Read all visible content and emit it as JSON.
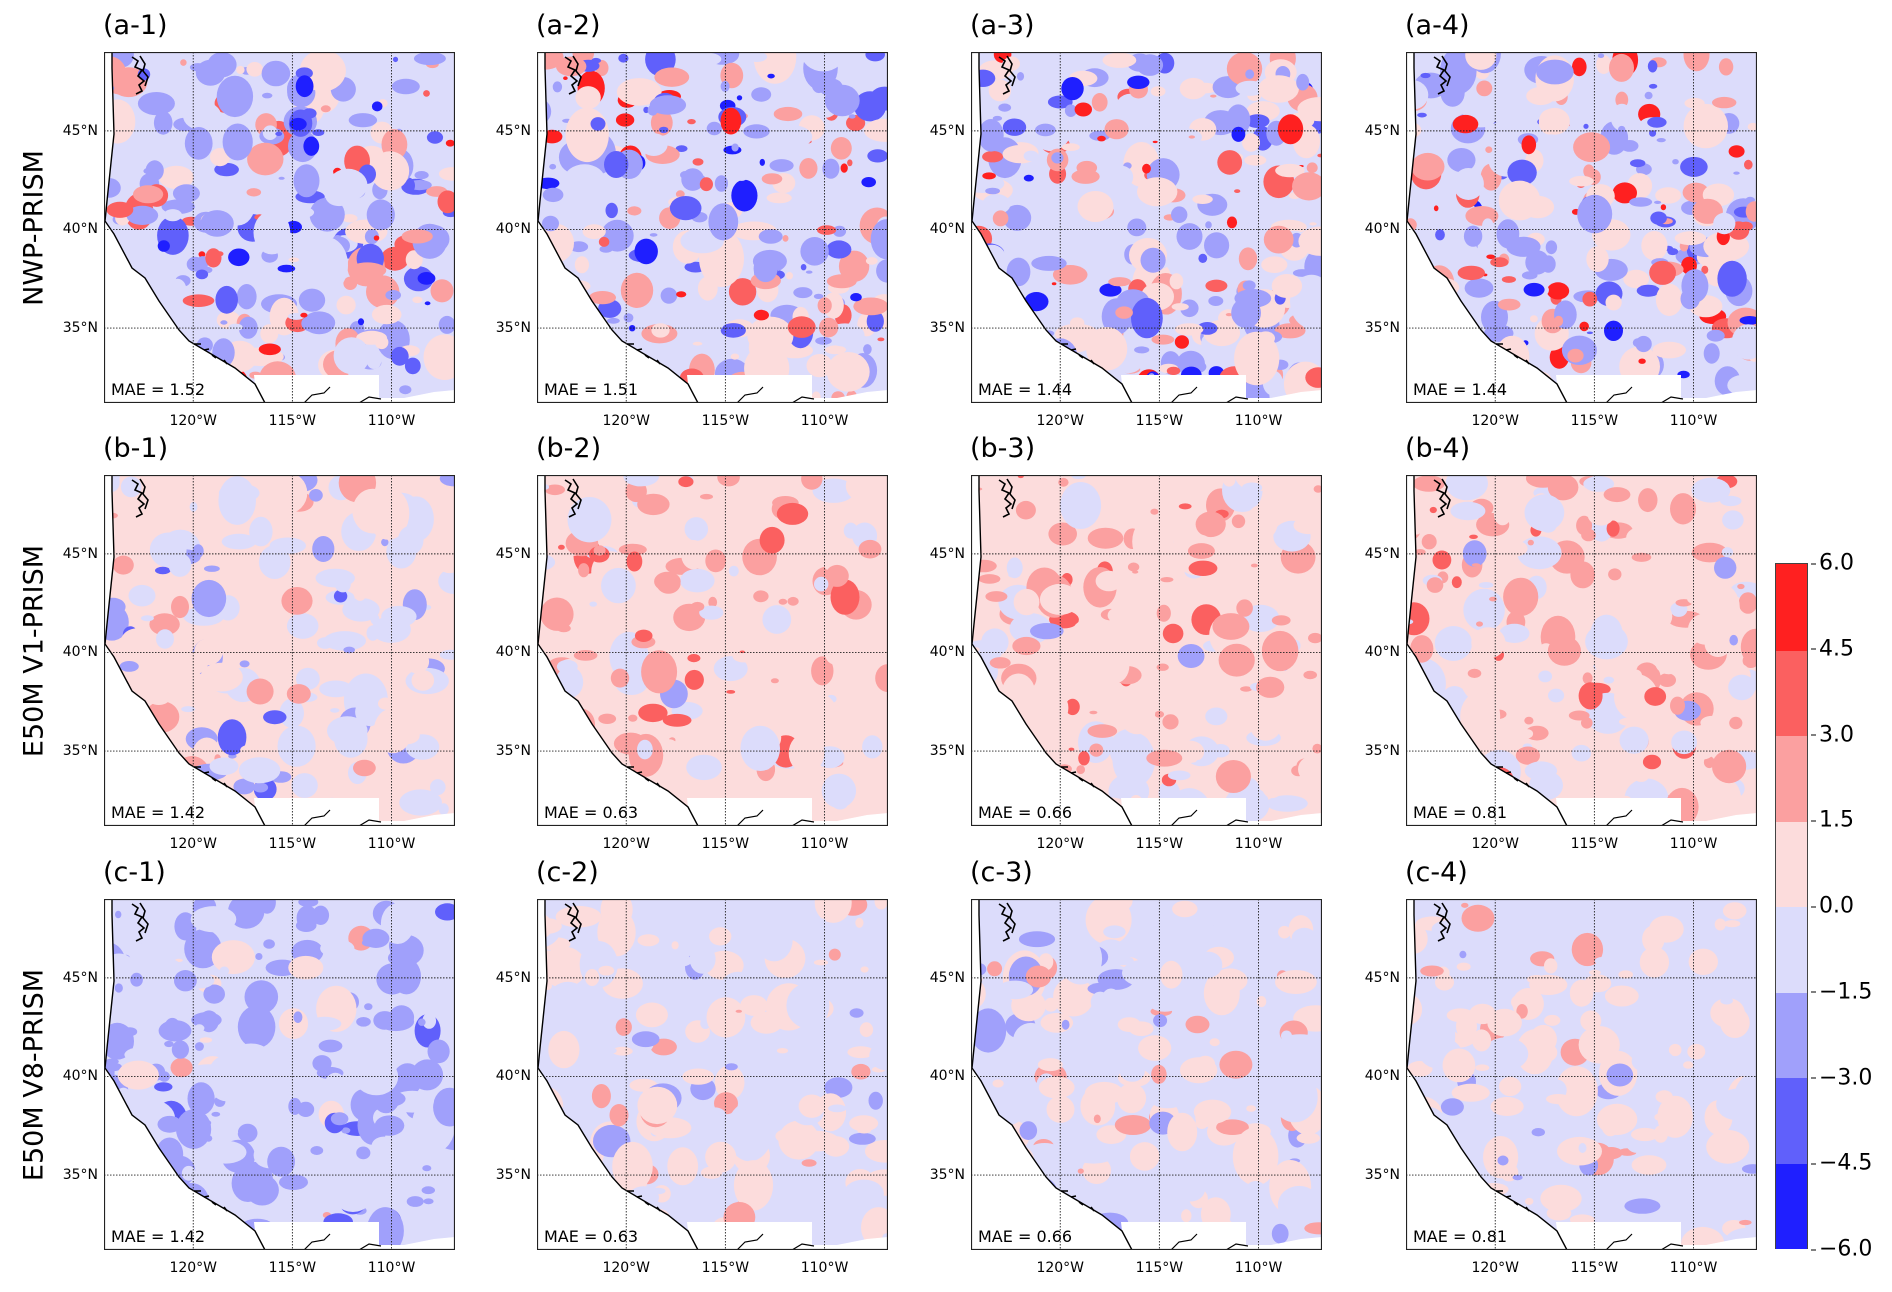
{
  "chart_data": {
    "type": "heatmap",
    "description_title": "",
    "row_labels": [
      "NWP-PRISM",
      "E50M V1-PRISM",
      "E50M V8-PRISM"
    ],
    "panels": [
      {
        "label": "(a-1)",
        "row": 0,
        "col": 0,
        "mae_text": "MAE = 1.52",
        "mae": 1.52
      },
      {
        "label": "(a-2)",
        "row": 0,
        "col": 1,
        "mae_text": "MAE = 1.51",
        "mae": 1.51
      },
      {
        "label": "(a-3)",
        "row": 0,
        "col": 2,
        "mae_text": "MAE = 1.44",
        "mae": 1.44
      },
      {
        "label": "(a-4)",
        "row": 0,
        "col": 3,
        "mae_text": "MAE = 1.44",
        "mae": 1.44
      },
      {
        "label": "(b-1)",
        "row": 1,
        "col": 0,
        "mae_text": "MAE = 1.42",
        "mae": 1.42
      },
      {
        "label": "(b-2)",
        "row": 1,
        "col": 1,
        "mae_text": "MAE = 0.63",
        "mae": 0.63
      },
      {
        "label": "(b-3)",
        "row": 1,
        "col": 2,
        "mae_text": "MAE = 0.66",
        "mae": 0.66
      },
      {
        "label": "(b-4)",
        "row": 1,
        "col": 3,
        "mae_text": "MAE = 0.81",
        "mae": 0.81
      },
      {
        "label": "(c-1)",
        "row": 2,
        "col": 0,
        "mae_text": "MAE = 1.42",
        "mae": 1.42
      },
      {
        "label": "(c-2)",
        "row": 2,
        "col": 1,
        "mae_text": "MAE = 0.63",
        "mae": 0.63
      },
      {
        "label": "(c-3)",
        "row": 2,
        "col": 2,
        "mae_text": "MAE = 0.66",
        "mae": 0.66
      },
      {
        "label": "(c-4)",
        "row": 2,
        "col": 3,
        "mae_text": "MAE = 0.81",
        "mae": 0.81
      }
    ],
    "lat_ticks": [
      {
        "value": 45,
        "label": "45°N"
      },
      {
        "value": 40,
        "label": "40°N"
      },
      {
        "value": 35,
        "label": "35°N"
      }
    ],
    "lon_ticks": [
      {
        "value": -120,
        "label": "120°W"
      },
      {
        "value": -115,
        "label": "115°W"
      },
      {
        "value": -110,
        "label": "110°W"
      }
    ],
    "lon_range": [
      -124.5,
      -106.8
    ],
    "lat_range": [
      31.2,
      49.0
    ],
    "colorbar": {
      "levels": [
        -6.0,
        -4.5,
        -3.0,
        -1.5,
        0.0,
        1.5,
        3.0,
        4.5,
        6.0
      ],
      "tick_labels": [
        "−6.0",
        "−4.5",
        "−3.0",
        "−1.5",
        "0.0",
        "1.5",
        "3.0",
        "4.5",
        "6.0"
      ],
      "colors": [
        "#1f1fff",
        "#6060fb",
        "#a0a0fb",
        "#dcdcfb",
        "#fcdcdc",
        "#fba0a0",
        "#fb6060",
        "#ff2020"
      ]
    }
  }
}
